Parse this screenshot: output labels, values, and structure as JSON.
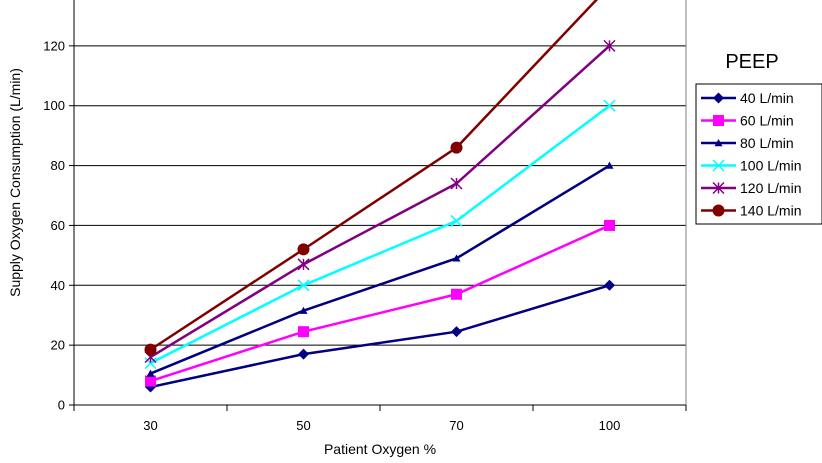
{
  "chart_data": {
    "type": "line",
    "xlabel": "Patient Oxygen %",
    "ylabel": "Supply Oxygen Consumption (L/min)",
    "x": [
      30,
      50,
      70,
      100
    ],
    "ylim": [
      0,
      140
    ],
    "yticks": [
      0,
      20,
      40,
      60,
      80,
      100,
      120
    ],
    "grid": true,
    "legend_title": "PEEP",
    "legend_position": "right",
    "series": [
      {
        "name": "40 L/min",
        "values": [
          6,
          17,
          24.5,
          40
        ],
        "color": "#000080",
        "marker": "diamond"
      },
      {
        "name": "60 L/min",
        "values": [
          8,
          24.5,
          37,
          60
        ],
        "color": "#ff00ff",
        "marker": "square"
      },
      {
        "name": "80 L/min",
        "values": [
          10.5,
          31.5,
          49,
          80
        ],
        "color": "#000080",
        "marker": "triangle"
      },
      {
        "name": "100 L/min",
        "values": [
          14,
          40,
          61.5,
          100
        ],
        "color": "#00ffff",
        "marker": "x"
      },
      {
        "name": "120 L/min",
        "values": [
          16,
          47,
          74,
          120
        ],
        "color": "#800080",
        "marker": "star"
      },
      {
        "name": "140 L/min",
        "values": [
          18.5,
          52,
          86,
          140
        ],
        "color": "#800000",
        "marker": "circle"
      }
    ]
  }
}
